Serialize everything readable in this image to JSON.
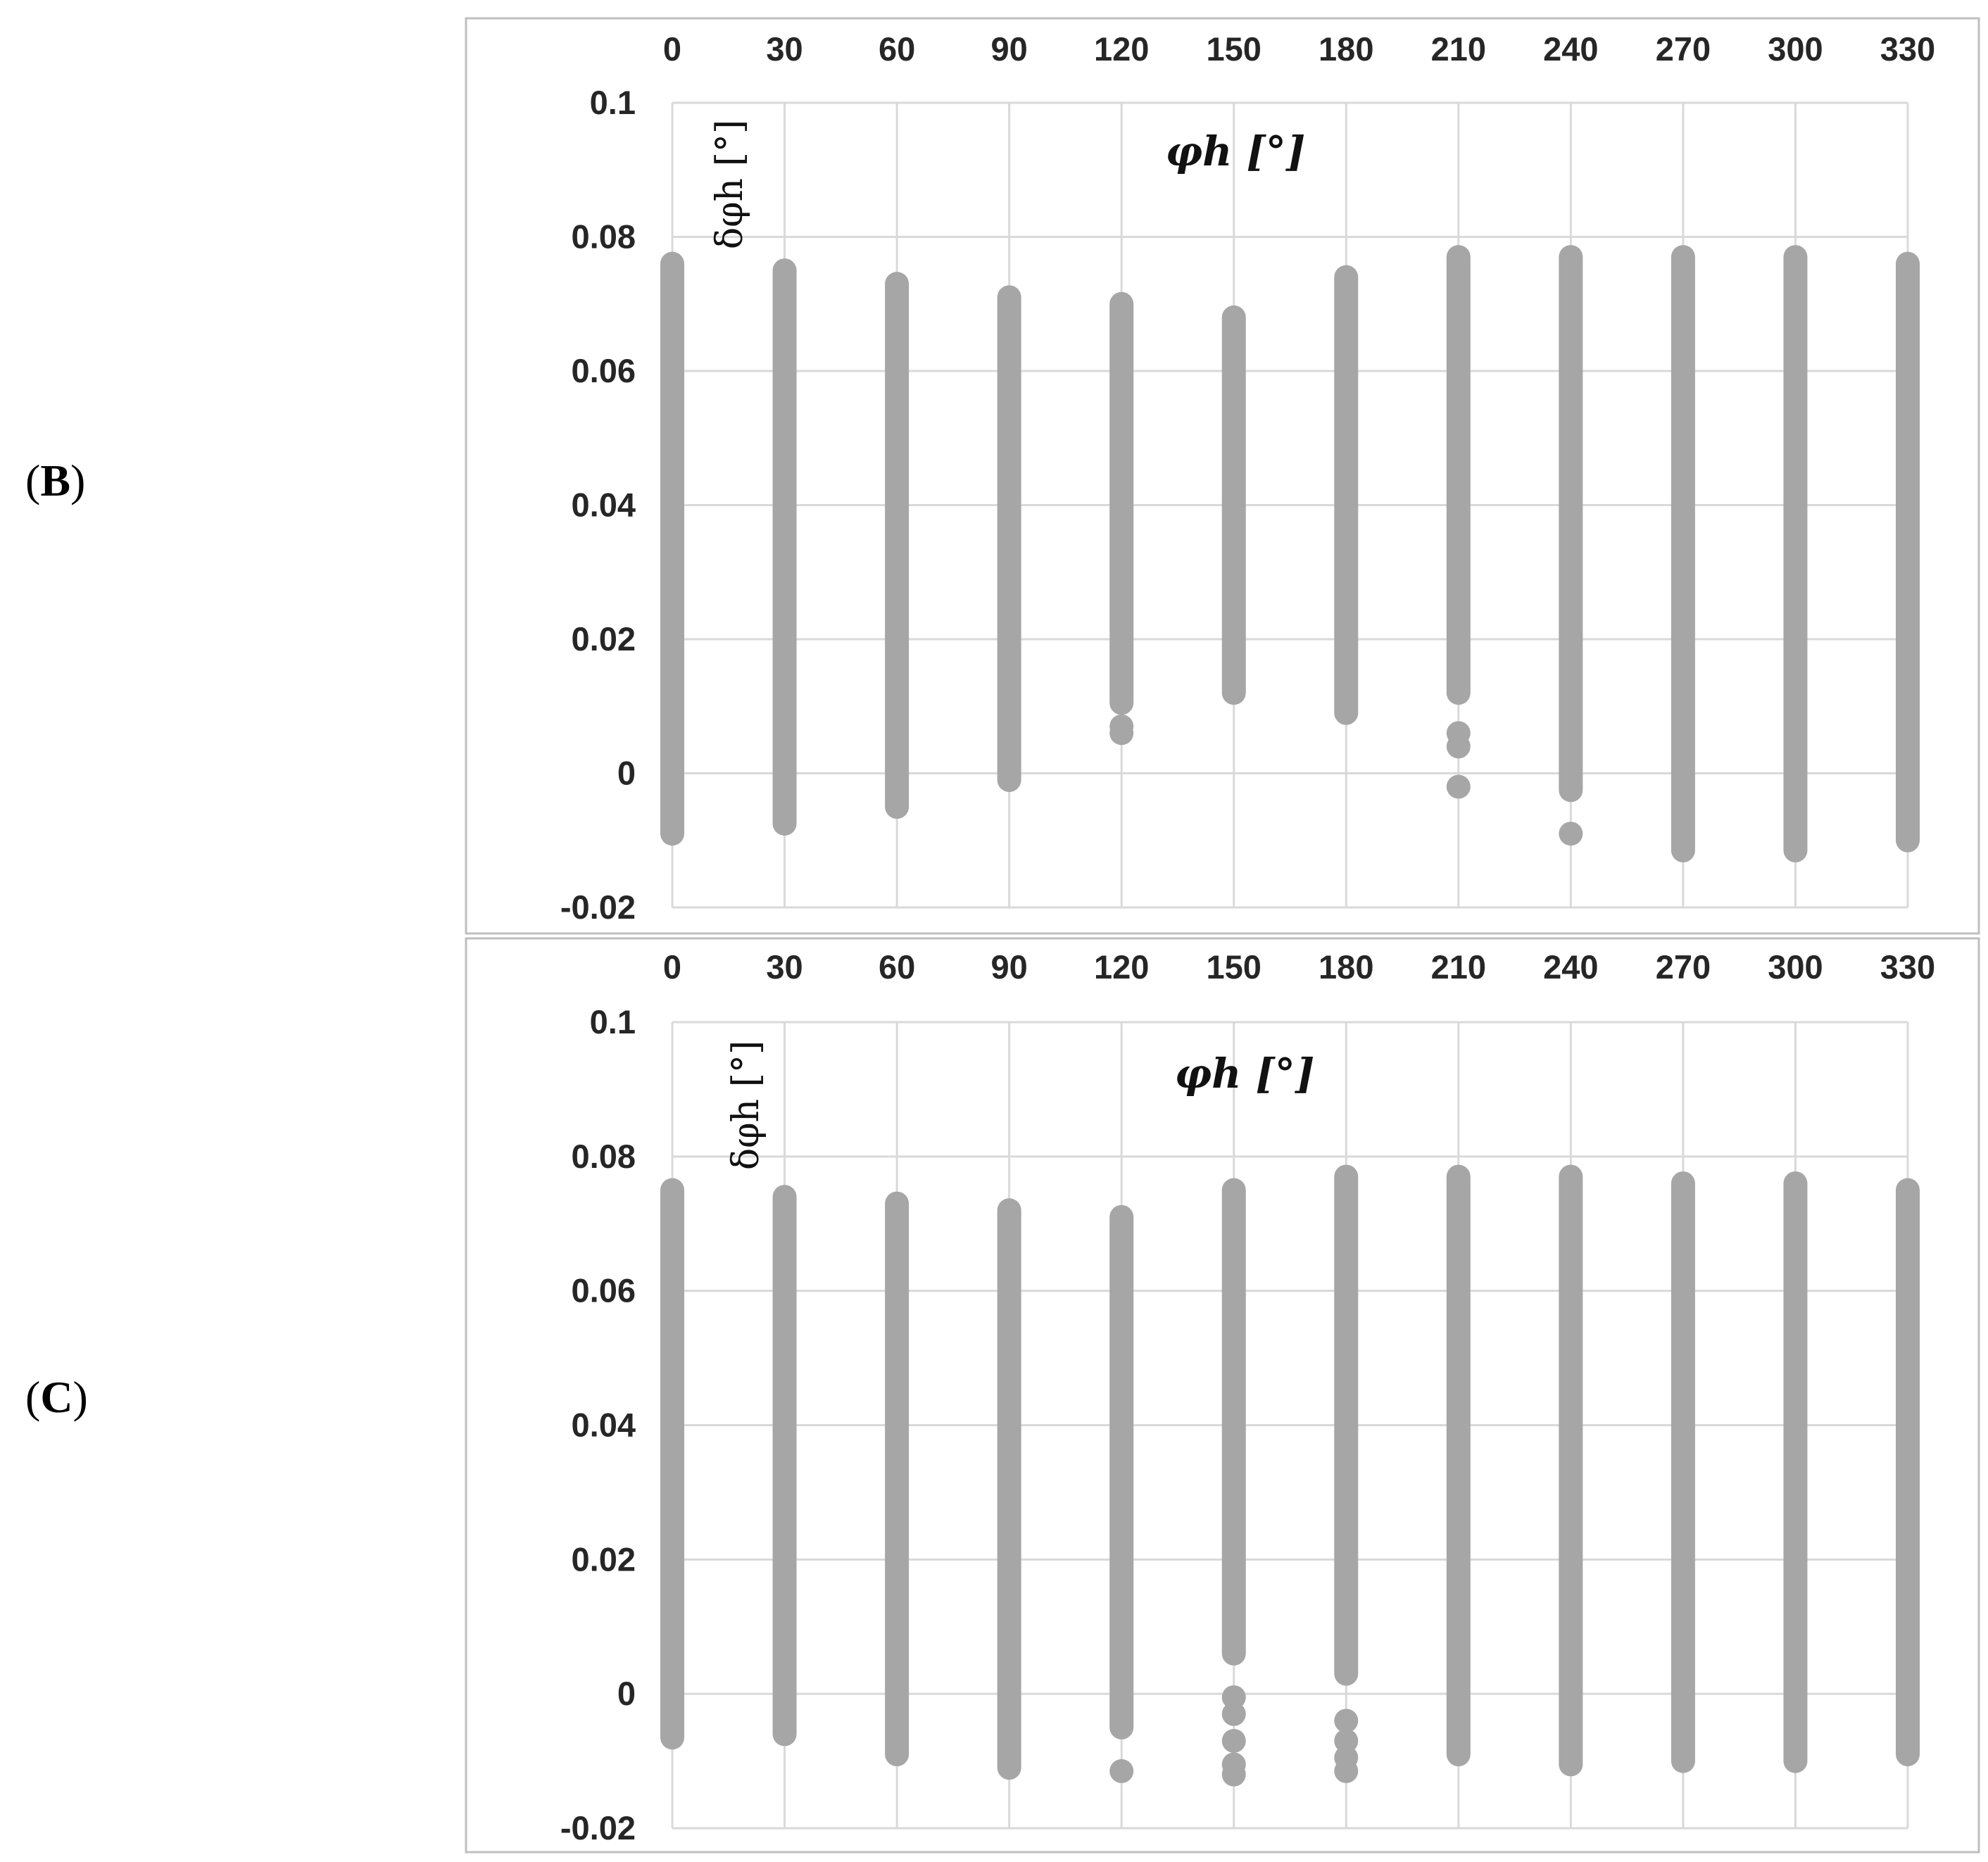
{
  "panels": [
    {
      "letter": "B",
      "open": "(",
      "close": ")"
    },
    {
      "letter": "C",
      "open": "(",
      "close": ")"
    }
  ],
  "colors": {
    "marker": "#a6a6a6",
    "grid": "#d9d9d9",
    "border": "#bfbfbf",
    "text": "#262626"
  },
  "chart_data": [
    {
      "type": "scatter",
      "panel": "B",
      "title": "φh [°]",
      "ylabel": "δφh [°]",
      "x_ticks": [
        "0",
        "30",
        "60",
        "90",
        "120",
        "150",
        "180",
        "210",
        "240",
        "270",
        "300",
        "330"
      ],
      "y_ticks": [
        "0.1",
        "0.08",
        "0.06",
        "0.04",
        "0.02",
        "0",
        "-0.02"
      ],
      "xlim": [
        0,
        330
      ],
      "ylim": [
        -0.02,
        0.1
      ],
      "x_axis_position": "top",
      "grid": true,
      "series": [
        {
          "x": 0,
          "y_min": -0.009,
          "y_max": 0.076,
          "isolated_points": []
        },
        {
          "x": 30,
          "y_min": -0.0075,
          "y_max": 0.075,
          "isolated_points": []
        },
        {
          "x": 60,
          "y_min": -0.005,
          "y_max": 0.073,
          "isolated_points": []
        },
        {
          "x": 90,
          "y_min": -0.001,
          "y_max": 0.071,
          "isolated_points": []
        },
        {
          "x": 120,
          "y_min": 0.0105,
          "y_max": 0.07,
          "isolated_points": [
            0.007,
            0.006
          ]
        },
        {
          "x": 150,
          "y_min": 0.012,
          "y_max": 0.068,
          "isolated_points": []
        },
        {
          "x": 180,
          "y_min": 0.009,
          "y_max": 0.074,
          "isolated_points": []
        },
        {
          "x": 210,
          "y_min": 0.012,
          "y_max": 0.077,
          "isolated_points": [
            0.006,
            0.004,
            -0.002
          ]
        },
        {
          "x": 240,
          "y_min": -0.0025,
          "y_max": 0.077,
          "isolated_points": [
            -0.009
          ]
        },
        {
          "x": 270,
          "y_min": -0.0115,
          "y_max": 0.077,
          "isolated_points": []
        },
        {
          "x": 300,
          "y_min": -0.0115,
          "y_max": 0.077,
          "isolated_points": []
        },
        {
          "x": 330,
          "y_min": -0.01,
          "y_max": 0.076,
          "isolated_points": []
        }
      ]
    },
    {
      "type": "scatter",
      "panel": "C",
      "title": "φh [°]",
      "ylabel": "δφh [°]",
      "x_ticks": [
        "0",
        "30",
        "60",
        "90",
        "120",
        "150",
        "180",
        "210",
        "240",
        "270",
        "300",
        "330"
      ],
      "y_ticks": [
        "0.1",
        "0.08",
        "0.06",
        "0.04",
        "0.02",
        "0",
        "-0.02"
      ],
      "xlim": [
        0,
        330
      ],
      "ylim": [
        -0.02,
        0.1
      ],
      "x_axis_position": "top",
      "grid": true,
      "series": [
        {
          "x": 0,
          "y_min": -0.0065,
          "y_max": 0.075,
          "isolated_points": []
        },
        {
          "x": 30,
          "y_min": -0.006,
          "y_max": 0.074,
          "isolated_points": []
        },
        {
          "x": 60,
          "y_min": -0.009,
          "y_max": 0.073,
          "isolated_points": []
        },
        {
          "x": 90,
          "y_min": -0.011,
          "y_max": 0.072,
          "isolated_points": []
        },
        {
          "x": 120,
          "y_min": -0.005,
          "y_max": 0.071,
          "isolated_points": [
            -0.0115
          ]
        },
        {
          "x": 150,
          "y_min": 0.006,
          "y_max": 0.075,
          "isolated_points": [
            -0.0005,
            -0.003,
            -0.007,
            -0.0105,
            -0.012
          ]
        },
        {
          "x": 180,
          "y_min": 0.003,
          "y_max": 0.077,
          "isolated_points": [
            -0.004,
            -0.007,
            -0.0095,
            -0.0115
          ]
        },
        {
          "x": 210,
          "y_min": -0.009,
          "y_max": 0.077,
          "isolated_points": []
        },
        {
          "x": 240,
          "y_min": -0.0105,
          "y_max": 0.077,
          "isolated_points": []
        },
        {
          "x": 270,
          "y_min": -0.01,
          "y_max": 0.076,
          "isolated_points": []
        },
        {
          "x": 300,
          "y_min": -0.01,
          "y_max": 0.076,
          "isolated_points": []
        },
        {
          "x": 330,
          "y_min": -0.009,
          "y_max": 0.075,
          "isolated_points": []
        }
      ]
    }
  ]
}
